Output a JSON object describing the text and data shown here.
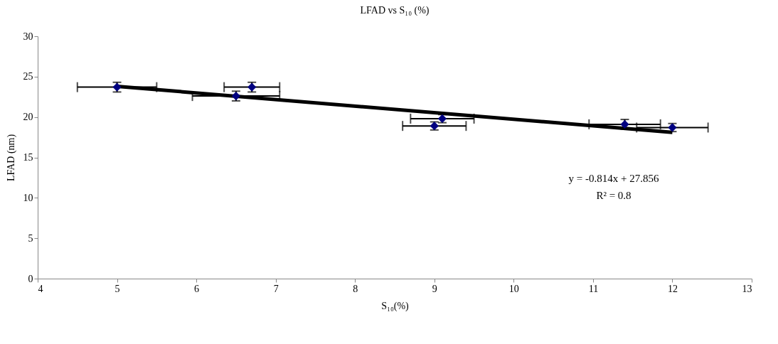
{
  "chart_data": {
    "type": "scatter",
    "title": "LFAD vs S₁₀ (%)",
    "xlabel": "S₁₀(%)",
    "ylabel": "LFAD (nm)",
    "xlim": [
      4,
      13
    ],
    "xticks": [
      4,
      5,
      6,
      7,
      8,
      9,
      10,
      11,
      12,
      13
    ],
    "ylim": [
      0,
      30
    ],
    "yticks": [
      0,
      5,
      10,
      15,
      20,
      25,
      30
    ],
    "grid": false,
    "series": [
      {
        "color": "#000080",
        "marker": "diamond",
        "x": [
          5,
          6.5,
          6.7,
          9.0,
          9.1,
          11.4,
          12.0
        ],
        "values": [
          23.7,
          22.6,
          23.7,
          18.9,
          19.8,
          19.1,
          18.7
        ],
        "errors": [
          0.6,
          0.6,
          0.6,
          0.5,
          0.5,
          0.6,
          0.5
        ],
        "xerrors": [
          0.5,
          0.55,
          0.35,
          0.4,
          0.4,
          0.45,
          0.45
        ]
      },
      {
        "type": "line",
        "color": "#000000",
        "marker": "none",
        "line_style": "solid",
        "x": [
          5,
          12
        ],
        "values": [
          23.8,
          18.1
        ]
      }
    ],
    "annotations": [
      "y = -0.814x + 27.856",
      "R² = 0.8"
    ]
  }
}
